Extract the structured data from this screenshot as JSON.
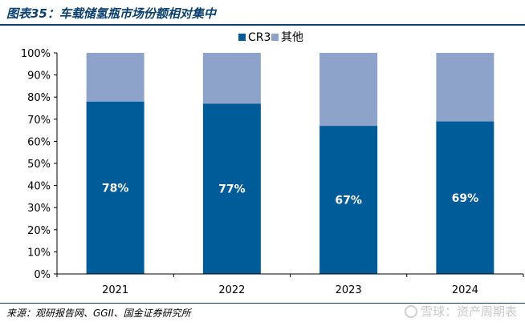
{
  "header": {
    "title": "图表35：车载储氢瓶市场份额相对集中"
  },
  "footer": {
    "source": "来源：观研报告网、GGII、国金证券研究所",
    "watermark": "雪球：资产周期表"
  },
  "colors": {
    "title": "#0a3f6e",
    "cr3": "#005b99",
    "others": "#8da3c9"
  },
  "chart_data": {
    "type": "bar",
    "stacked": true,
    "categories": [
      "2021",
      "2022",
      "2023",
      "2024"
    ],
    "series": [
      {
        "name": "CR3",
        "values": [
          78,
          77,
          67,
          69
        ],
        "labels": [
          "78%",
          "77%",
          "67%",
          "69%"
        ]
      },
      {
        "name": "其他",
        "values": [
          22,
          23,
          33,
          31
        ]
      }
    ],
    "ylim": [
      0,
      100
    ],
    "yticks": [
      "0%",
      "10%",
      "20%",
      "30%",
      "40%",
      "50%",
      "60%",
      "70%",
      "80%",
      "90%",
      "100%"
    ],
    "legend": "top-center",
    "grid": false
  }
}
